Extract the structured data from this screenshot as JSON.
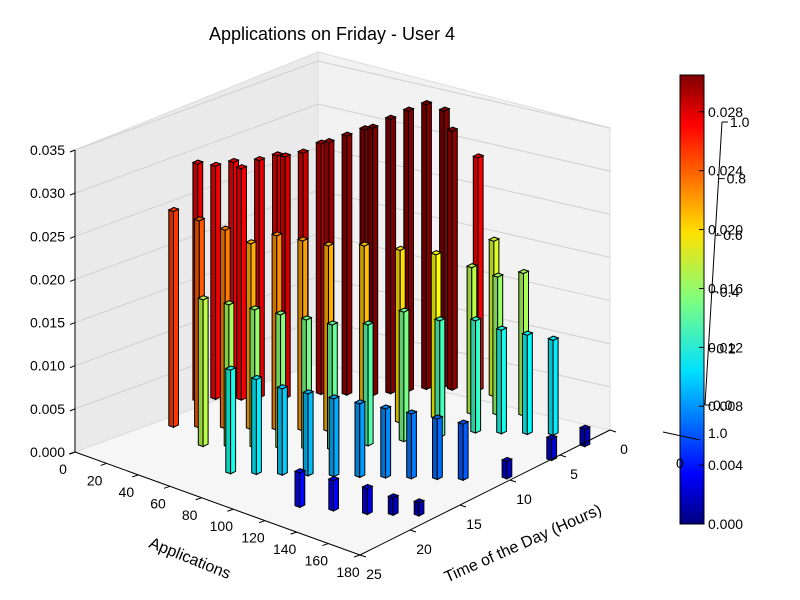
{
  "chart_data": {
    "type": "bar3d",
    "title": "Applications on Friday - User 4",
    "xlabel": "Applications",
    "ylabel": "Time of the Day (Hours)",
    "zlabel": "",
    "xlim": [
      0,
      180
    ],
    "ylim": [
      0,
      25
    ],
    "zlim": [
      0,
      0.035
    ],
    "x_ticks": [
      "0",
      "20",
      "40",
      "60",
      "80",
      "100",
      "120",
      "140",
      "160",
      "180"
    ],
    "y_ticks": [
      "0",
      "5",
      "10",
      "15",
      "20",
      "25"
    ],
    "z_ticks": [
      "0.000",
      "0.005",
      "0.010",
      "0.015",
      "0.020",
      "0.025",
      "0.030",
      "0.035"
    ],
    "colormap": "jet",
    "grid": true,
    "bars": [
      {
        "app": 5,
        "hour": 14,
        "value": 0.0275
      },
      {
        "app": 10,
        "hour": 13,
        "value": 0.027
      },
      {
        "app": 15,
        "hour": 12,
        "value": 0.0272
      },
      {
        "app": 20,
        "hour": 12,
        "value": 0.0268
      },
      {
        "app": 25,
        "hour": 11,
        "value": 0.0275
      },
      {
        "app": 30,
        "hour": 10,
        "value": 0.0278
      },
      {
        "app": 35,
        "hour": 10,
        "value": 0.028
      },
      {
        "app": 40,
        "hour": 9,
        "value": 0.0282
      },
      {
        "app": 45,
        "hour": 8,
        "value": 0.029
      },
      {
        "app": 50,
        "hour": 8,
        "value": 0.0295
      },
      {
        "app": 55,
        "hour": 7,
        "value": 0.03
      },
      {
        "app": 60,
        "hour": 6,
        "value": 0.0305
      },
      {
        "app": 65,
        "hour": 6,
        "value": 0.031
      },
      {
        "app": 70,
        "hour": 5,
        "value": 0.0318
      },
      {
        "app": 75,
        "hour": 4,
        "value": 0.0325
      },
      {
        "app": 80,
        "hour": 3,
        "value": 0.033
      },
      {
        "app": 85,
        "hour": 2,
        "value": 0.032
      },
      {
        "app": 90,
        "hour": 2,
        "value": 0.03
      },
      {
        "app": 100,
        "hour": 1,
        "value": 0.027
      },
      {
        "app": 110,
        "hour": 1,
        "value": 0.018
      },
      {
        "app": 15,
        "hour": 18,
        "value": 0.025
      },
      {
        "app": 25,
        "hour": 17,
        "value": 0.024
      },
      {
        "app": 35,
        "hour": 16,
        "value": 0.023
      },
      {
        "app": 45,
        "hour": 15,
        "value": 0.0215
      },
      {
        "app": 55,
        "hour": 14,
        "value": 0.0225
      },
      {
        "app": 65,
        "hour": 13,
        "value": 0.022
      },
      {
        "app": 75,
        "hour": 12,
        "value": 0.0215
      },
      {
        "app": 85,
        "hour": 10,
        "value": 0.021
      },
      {
        "app": 95,
        "hour": 8,
        "value": 0.02
      },
      {
        "app": 105,
        "hour": 6,
        "value": 0.019
      },
      {
        "app": 115,
        "hour": 4,
        "value": 0.017
      },
      {
        "app": 125,
        "hour": 3,
        "value": 0.016
      },
      {
        "app": 135,
        "hour": 2,
        "value": 0.0165
      },
      {
        "app": 40,
        "hour": 19,
        "value": 0.017
      },
      {
        "app": 50,
        "hour": 18,
        "value": 0.0165
      },
      {
        "app": 60,
        "hour": 17,
        "value": 0.016
      },
      {
        "app": 70,
        "hour": 16,
        "value": 0.0155
      },
      {
        "app": 80,
        "hour": 15,
        "value": 0.015
      },
      {
        "app": 90,
        "hour": 14,
        "value": 0.0145
      },
      {
        "app": 100,
        "hour": 12,
        "value": 0.014
      },
      {
        "app": 110,
        "hour": 10,
        "value": 0.015
      },
      {
        "app": 120,
        "hour": 8,
        "value": 0.0135
      },
      {
        "app": 130,
        "hour": 6,
        "value": 0.013
      },
      {
        "app": 140,
        "hour": 5,
        "value": 0.012
      },
      {
        "app": 150,
        "hour": 4,
        "value": 0.0115
      },
      {
        "app": 160,
        "hour": 3,
        "value": 0.011
      },
      {
        "app": 70,
        "hour": 21,
        "value": 0.012
      },
      {
        "app": 80,
        "hour": 20,
        "value": 0.011
      },
      {
        "app": 90,
        "hour": 19,
        "value": 0.01
      },
      {
        "app": 100,
        "hour": 18,
        "value": 0.0095
      },
      {
        "app": 110,
        "hour": 17,
        "value": 0.009
      },
      {
        "app": 120,
        "hour": 16,
        "value": 0.0085
      },
      {
        "app": 130,
        "hour": 15,
        "value": 0.008
      },
      {
        "app": 140,
        "hour": 14,
        "value": 0.0075
      },
      {
        "app": 150,
        "hour": 13,
        "value": 0.007
      },
      {
        "app": 160,
        "hour": 12,
        "value": 0.0065
      },
      {
        "app": 120,
        "hour": 22,
        "value": 0.004
      },
      {
        "app": 135,
        "hour": 21,
        "value": 0.0035
      },
      {
        "app": 150,
        "hour": 20,
        "value": 0.003
      },
      {
        "app": 160,
        "hour": 19,
        "value": 0.002
      },
      {
        "app": 170,
        "hour": 18,
        "value": 0.0015
      },
      {
        "app": 175,
        "hour": 10,
        "value": 0.002
      },
      {
        "app": 178,
        "hour": 6,
        "value": 0.0025
      },
      {
        "app": 180,
        "hour": 3,
        "value": 0.002
      }
    ],
    "colorbar": {
      "ticks": [
        "0.000",
        "0.004",
        "0.008",
        "0.012",
        "0.016",
        "0.020",
        "0.024",
        "0.028"
      ],
      "range": [
        0,
        0.0305
      ],
      "overlay_ticks": [
        "0.0",
        "0.2",
        "0.4",
        "0.6",
        "0.8",
        "1.0"
      ],
      "overlay_extra": [
        "1.0",
        "0"
      ]
    }
  }
}
